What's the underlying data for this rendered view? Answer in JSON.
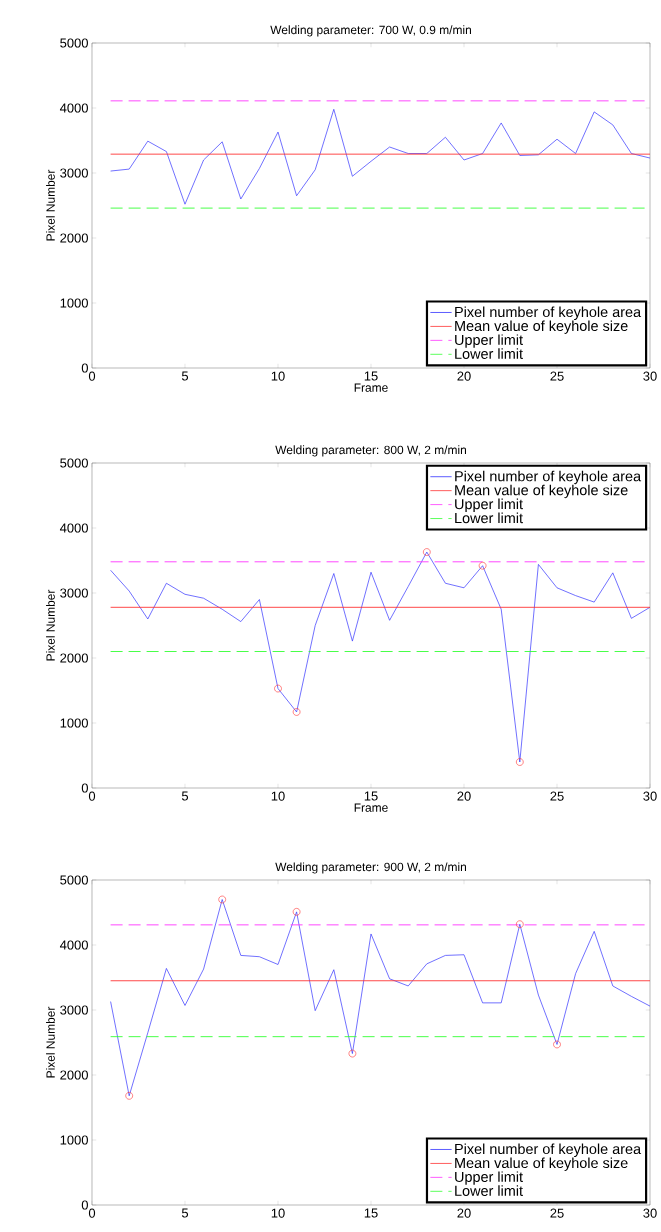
{
  "chart_data": [
    {
      "type": "line",
      "title": "Welding parameter: 700 W, 0.9 m/min",
      "xlabel": "Frame",
      "ylabel": "Pixel Number",
      "x": [
        1,
        2,
        3,
        4,
        5,
        6,
        7,
        8,
        9,
        10,
        11,
        12,
        13,
        14,
        15,
        16,
        17,
        18,
        19,
        20,
        21,
        22,
        23,
        24,
        25,
        26,
        27,
        28,
        29,
        30
      ],
      "series": [
        {
          "name": "Pixel  number of keyhole area",
          "color": "#3333ff",
          "values": [
            3030,
            3060,
            3490,
            3330,
            2520,
            3200,
            3480,
            2600,
            3070,
            3630,
            2650,
            3050,
            3980,
            2950,
            3180,
            3400,
            3300,
            3300,
            3550,
            3200,
            3300,
            3770,
            3270,
            3280,
            3520,
            3300,
            3940,
            3740,
            3300,
            3230
          ]
        }
      ],
      "ref_lines": [
        {
          "axis": "y",
          "value": 3290,
          "label": "Mean value of keyhole size",
          "color": "#ff3333",
          "line_style": "solid"
        },
        {
          "axis": "y",
          "value": 4110,
          "label": "Upper limit",
          "color": "#ff33ff",
          "line_style": "dashed"
        },
        {
          "axis": "y",
          "value": 2460,
          "label": "Lower limit",
          "color": "#33ff33",
          "line_style": "dashed"
        }
      ],
      "xlim": [
        0,
        30
      ],
      "ylim": [
        0,
        5000
      ],
      "xticks": [
        0,
        5,
        10,
        15,
        20,
        25,
        30
      ],
      "yticks": [
        0,
        1000,
        2000,
        3000,
        4000,
        5000
      ],
      "legend": "bottom right",
      "marker": "none",
      "line_style": "solid",
      "grid": false
    },
    {
      "type": "line",
      "title": "Welding parameter: 800 W, 2 m/min",
      "xlabel": "Frame",
      "ylabel": "Pixel Number",
      "x": [
        1,
        2,
        3,
        4,
        5,
        6,
        7,
        8,
        9,
        10,
        11,
        12,
        13,
        14,
        15,
        16,
        17,
        18,
        19,
        20,
        21,
        22,
        23,
        24,
        25,
        26,
        27,
        28,
        29,
        30
      ],
      "series": [
        {
          "name": "Pixel  number of keyhole area",
          "color": "#3333ff",
          "values": [
            3350,
            3030,
            2600,
            3150,
            2980,
            2920,
            2750,
            2560,
            2900,
            1530,
            1170,
            2500,
            3300,
            2260,
            3320,
            2580,
            3100,
            3630,
            3150,
            3080,
            3420,
            2750,
            400,
            3440,
            3080,
            2960,
            2860,
            3310,
            2610,
            2780
          ]
        },
        {
          "type": "scatter",
          "color": "#ff3333",
          "marker": "circle",
          "x": [
            10,
            11,
            18,
            21,
            23
          ],
          "values": [
            1530,
            1170,
            3630,
            3420,
            400
          ]
        }
      ],
      "ref_lines": [
        {
          "axis": "y",
          "value": 2780,
          "label": "Mean value of keyhole size",
          "color": "#ff3333",
          "line_style": "solid"
        },
        {
          "axis": "y",
          "value": 3480,
          "label": "Upper limit",
          "color": "#ff33ff",
          "line_style": "dashed"
        },
        {
          "axis": "y",
          "value": 2100,
          "label": "Lower limit",
          "color": "#33ff33",
          "line_style": "dashed"
        }
      ],
      "xlim": [
        0,
        30
      ],
      "ylim": [
        0,
        5000
      ],
      "xticks": [
        0,
        5,
        10,
        15,
        20,
        25,
        30
      ],
      "yticks": [
        0,
        1000,
        2000,
        3000,
        4000,
        5000
      ],
      "legend": "top right",
      "marker": "none",
      "line_style": "solid",
      "grid": false
    },
    {
      "type": "line",
      "title": "Welding parameter: 900 W, 2 m/min",
      "ylabel": "Pixel Number",
      "x": [
        1,
        2,
        3,
        4,
        5,
        6,
        7,
        8,
        9,
        10,
        11,
        12,
        13,
        14,
        15,
        16,
        17,
        18,
        19,
        20,
        21,
        22,
        23,
        24,
        25,
        26,
        27,
        28,
        29,
        30
      ],
      "series": [
        {
          "name": "Pixel  number of keyhole area",
          "color": "#3333ff",
          "values": [
            3130,
            1680,
            2650,
            3640,
            3070,
            3630,
            4700,
            3840,
            3820,
            3700,
            4510,
            2990,
            3620,
            2330,
            4170,
            3480,
            3370,
            3710,
            3840,
            3850,
            3110,
            3110,
            4320,
            3230,
            2470,
            3560,
            4210,
            3370,
            3210,
            3060
          ]
        },
        {
          "type": "scatter",
          "color": "#ff3333",
          "marker": "circle",
          "x": [
            2,
            7,
            11,
            14,
            23,
            25
          ],
          "values": [
            1680,
            4700,
            4510,
            2330,
            4320,
            2470
          ]
        }
      ],
      "ref_lines": [
        {
          "axis": "y",
          "value": 3450,
          "label": "Mean value of keyhole size",
          "color": "#ff3333",
          "line_style": "solid"
        },
        {
          "axis": "y",
          "value": 4310,
          "label": "Upper limit",
          "color": "#ff33ff",
          "line_style": "dashed"
        },
        {
          "axis": "y",
          "value": 2590,
          "label": "Lower limit",
          "color": "#33ff33",
          "line_style": "dashed"
        }
      ],
      "xlim": [
        0,
        30
      ],
      "ylim": [
        0,
        5000
      ],
      "xticks": [
        0,
        5,
        10,
        15,
        20,
        25,
        30
      ],
      "yticks": [
        0,
        1000,
        2000,
        3000,
        4000,
        5000
      ],
      "legend": "bottom right",
      "marker": "none",
      "line_style": "solid",
      "grid": false
    }
  ]
}
